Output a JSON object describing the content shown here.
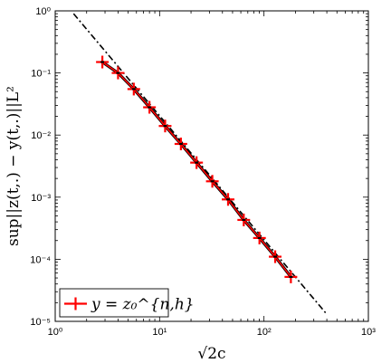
{
  "chart_data": {
    "type": "line",
    "title": "",
    "xlabel": "√2c",
    "ylabel": "sup||z(t,.) − y(t,.)||L²",
    "xscale": "log",
    "yscale": "log",
    "xlim": [
      1,
      1000
    ],
    "ylim": [
      1e-05,
      1
    ],
    "x_tick_labels": [
      "10⁰",
      "10¹",
      "10²",
      "10³"
    ],
    "y_tick_labels": [
      "10⁰",
      "10⁻¹",
      "10⁻²",
      "10⁻³",
      "10⁻⁴",
      "10⁻⁵"
    ],
    "grid": false,
    "legend_position": "bottom-left",
    "series": [
      {
        "name": "y = z₀^{n,h}",
        "style": "red line with black markers",
        "color": "#ff0000",
        "marker": "+",
        "x": [
          2.83,
          4.0,
          5.66,
          8.0,
          11.3,
          16.0,
          22.6,
          32.0,
          45.3,
          64.0,
          90.5,
          128.0,
          181.0
        ],
        "y": [
          0.15,
          0.1,
          0.055,
          0.028,
          0.014,
          0.0072,
          0.0036,
          0.0018,
          0.00092,
          0.00043,
          0.00022,
          0.00011,
          5.2e-05
        ]
      },
      {
        "style": "black dash-dot reference line",
        "color": "#000000",
        "x": [
          1.5,
          400
        ],
        "y": [
          0.9,
          1.3e-05
        ]
      }
    ]
  }
}
